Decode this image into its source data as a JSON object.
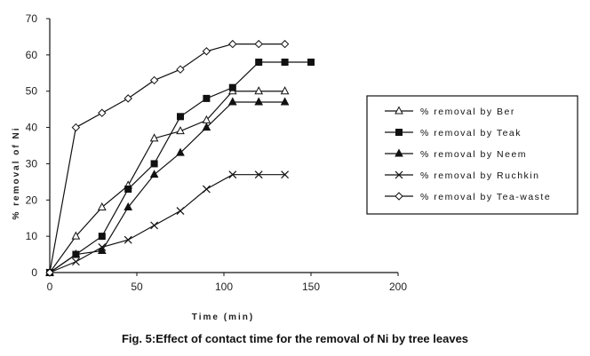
{
  "caption": "Fig. 5:Effect of contact time for the removal of Ni by tree leaves",
  "chart_data": {
    "type": "line",
    "title": "",
    "xlabel": "Time (min)",
    "ylabel": "% removal of Ni",
    "xlim": [
      0,
      200
    ],
    "ylim": [
      0,
      70
    ],
    "xticks": [
      0,
      50,
      100,
      150,
      200
    ],
    "yticks": [
      0,
      10,
      20,
      30,
      40,
      50,
      60,
      70
    ],
    "grid": false,
    "legend_position": "right",
    "series": [
      {
        "name": "% removal by Ber",
        "marker": "triangle-open",
        "x": [
          0,
          15,
          30,
          45,
          60,
          75,
          90,
          105,
          120,
          135
        ],
        "y": [
          0,
          10,
          18,
          24,
          37,
          39,
          42,
          50,
          50,
          50
        ]
      },
      {
        "name": "% removal by Teak",
        "marker": "square-filled",
        "x": [
          0,
          15,
          30,
          45,
          60,
          75,
          90,
          105,
          120,
          135,
          150
        ],
        "y": [
          0,
          5,
          10,
          23,
          30,
          43,
          48,
          51,
          58,
          58,
          58
        ]
      },
      {
        "name": "% removal by Neem",
        "marker": "triangle-filled",
        "x": [
          0,
          15,
          30,
          45,
          60,
          75,
          90,
          105,
          120,
          135
        ],
        "y": [
          0,
          5,
          6,
          18,
          27,
          33,
          40,
          47,
          47,
          47
        ]
      },
      {
        "name": "% removal by Ruchkin",
        "marker": "cross",
        "x": [
          0,
          15,
          30,
          45,
          60,
          75,
          90,
          105,
          120,
          135
        ],
        "y": [
          0,
          3,
          7,
          9,
          13,
          17,
          23,
          27,
          27,
          27
        ]
      },
      {
        "name": "% removal by Tea-waste",
        "marker": "diamond-open",
        "x": [
          0,
          15,
          30,
          45,
          60,
          75,
          90,
          105,
          120,
          135
        ],
        "y": [
          0,
          40,
          44,
          48,
          53,
          56,
          61,
          63,
          63,
          63
        ]
      }
    ]
  }
}
